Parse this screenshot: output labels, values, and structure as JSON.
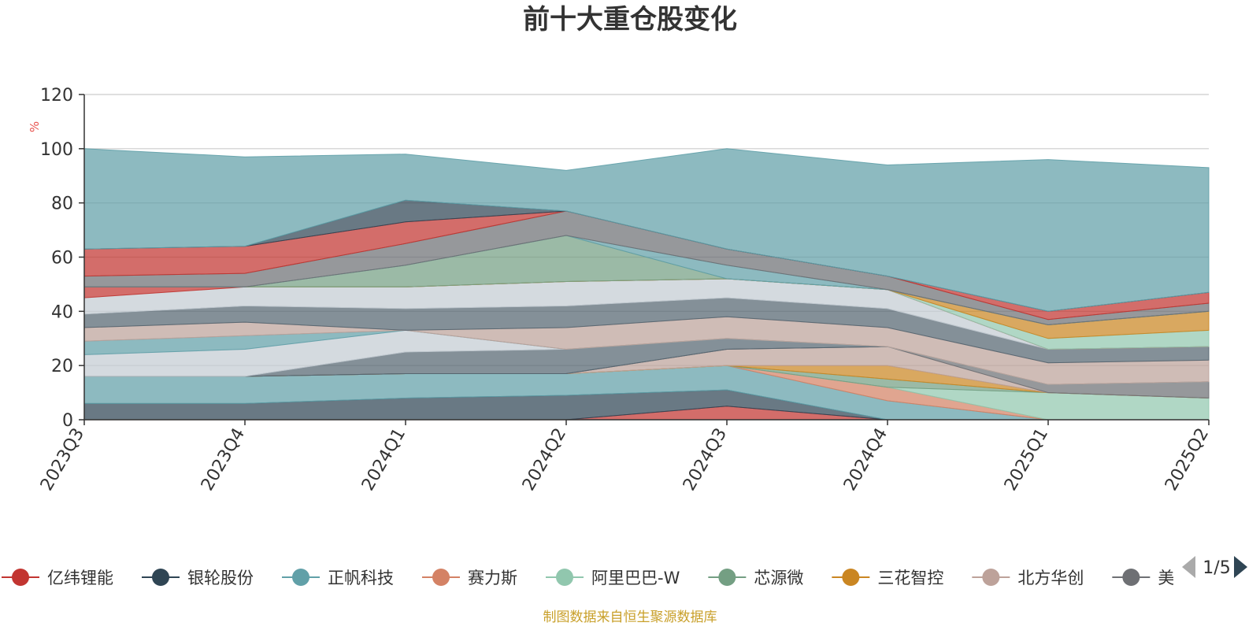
{
  "chart_data": {
    "type": "area",
    "stacked": true,
    "title": "前十大重仓股变化",
    "ylabel": "%",
    "ylim": [
      0,
      120
    ],
    "yticks": [
      "0",
      "20",
      "40",
      "60",
      "80",
      "100",
      "120"
    ],
    "categories": [
      "2023Q3",
      "2023Q4",
      "2024Q1",
      "2024Q2",
      "2024Q3",
      "2024Q4",
      "2025Q1",
      "2025Q2"
    ],
    "grid": true,
    "series": [
      {
        "name": "亿纬锂能",
        "color": "#c23531",
        "values": [
          0,
          0,
          0,
          0,
          5,
          0,
          0,
          0
        ]
      },
      {
        "name": "银轮股份",
        "color": "#2f4554",
        "values": [
          6,
          6,
          8,
          9,
          6,
          0,
          0,
          0
        ]
      },
      {
        "name": "正帆科技",
        "color": "#61a0a8",
        "values": [
          10,
          10,
          9,
          8,
          9,
          7,
          0,
          0
        ]
      },
      {
        "name": "赛力斯",
        "color": "#d48265",
        "values": [
          0,
          0,
          0,
          0,
          0,
          5,
          0,
          0
        ]
      },
      {
        "name": "阿里巴巴-W",
        "color": "#91c7ae",
        "values": [
          0,
          0,
          0,
          0,
          0,
          0,
          10,
          8
        ]
      },
      {
        "name": "芯源微",
        "color": "#749f83",
        "values": [
          0,
          0,
          0,
          0,
          0,
          3,
          0,
          0
        ]
      },
      {
        "name": "三花智控",
        "color": "#ca8622",
        "values": [
          0,
          0,
          0,
          0,
          0,
          5,
          0,
          0
        ]
      },
      {
        "name": "北方华创",
        "color": "#bda29a",
        "values": [
          0,
          0,
          0,
          0,
          6,
          7,
          0,
          0
        ]
      },
      {
        "name": "美",
        "color": "#6e7074",
        "values": [
          0,
          0,
          0,
          0,
          0,
          0,
          3,
          6
        ]
      },
      {
        "name": "",
        "color": "#546570",
        "values": [
          0,
          0,
          8,
          9,
          4,
          0,
          0,
          0
        ]
      },
      {
        "name": "",
        "color": "#c4ccd3",
        "values": [
          8,
          10,
          8,
          0,
          0,
          0,
          0,
          0
        ]
      },
      {
        "name": "",
        "color": "#61a0a8",
        "values": [
          5,
          5,
          0,
          0,
          0,
          0,
          0,
          0
        ]
      },
      {
        "name": "",
        "color": "#bda29a",
        "values": [
          5,
          5,
          0,
          8,
          8,
          7,
          8,
          8
        ]
      },
      {
        "name": "",
        "color": "#546570",
        "values": [
          5,
          6,
          8,
          8,
          7,
          7,
          5,
          5
        ]
      },
      {
        "name": "",
        "color": "#c4ccd3",
        "values": [
          6,
          7,
          8,
          9,
          7,
          7,
          0,
          0
        ]
      },
      {
        "name": "",
        "color": "#c23531",
        "values": [
          4,
          0,
          0,
          0,
          0,
          0,
          0,
          0
        ]
      },
      {
        "name": "",
        "color": "#91c7ae",
        "values": [
          0,
          0,
          0,
          0,
          0,
          0,
          4,
          6
        ]
      },
      {
        "name": "",
        "color": "#ca8622",
        "values": [
          0,
          0,
          0,
          0,
          0,
          0,
          5,
          7
        ]
      },
      {
        "name": "",
        "color": "#749f83",
        "values": [
          0,
          0,
          8,
          17,
          0,
          0,
          0,
          0
        ]
      },
      {
        "name": "",
        "color": "#61a0a8",
        "values": [
          0,
          0,
          0,
          0,
          5,
          0,
          0,
          0
        ]
      },
      {
        "name": "",
        "color": "#6e7074",
        "values": [
          4,
          5,
          8,
          9,
          6,
          5,
          2,
          3
        ]
      },
      {
        "name": "",
        "color": "#c23531",
        "values": [
          10,
          10,
          8,
          0,
          0,
          0,
          3,
          4
        ]
      },
      {
        "name": "",
        "color": "#2f4554",
        "values": [
          0,
          0,
          8,
          0,
          0,
          0,
          0,
          0
        ]
      },
      {
        "name": "",
        "color": "#61a0a8",
        "values": [
          37,
          33,
          17,
          15,
          37,
          41,
          56,
          46
        ]
      }
    ]
  },
  "legend": {
    "items": [
      {
        "label": "亿纬锂能",
        "color": "#c23531"
      },
      {
        "label": "银轮股份",
        "color": "#2f4554"
      },
      {
        "label": "正帆科技",
        "color": "#61a0a8"
      },
      {
        "label": "赛力斯",
        "color": "#d48265"
      },
      {
        "label": "阿里巴巴-W",
        "color": "#91c7ae"
      },
      {
        "label": "芯源微",
        "color": "#749f83"
      },
      {
        "label": "三花智控",
        "color": "#ca8622"
      },
      {
        "label": "北方华创",
        "color": "#bda29a"
      },
      {
        "label": "美",
        "color": "#6e7074"
      }
    ],
    "page_indicator": "1/5",
    "prev_icon": "triangle-left-icon",
    "next_icon": "triangle-right-icon"
  },
  "source_note": "制图数据来自恒生聚源数据库"
}
